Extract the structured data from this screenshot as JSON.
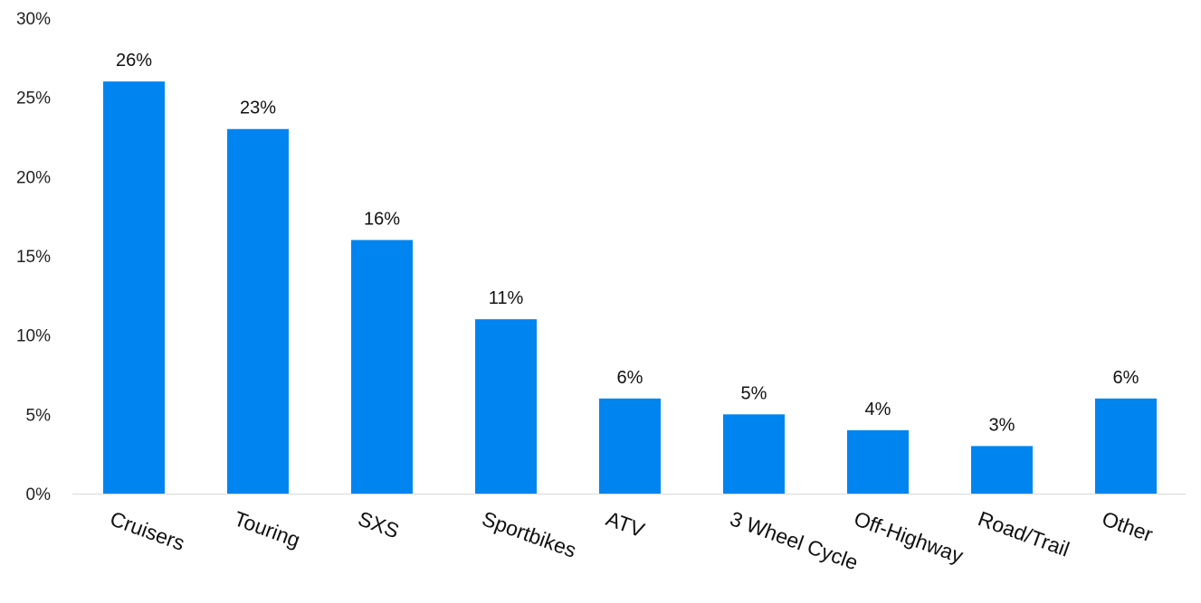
{
  "chart_data": {
    "type": "bar",
    "categories": [
      "Cruisers",
      "Touring",
      "SXS",
      "Sportbikes",
      "ATV",
      "3 Wheel Cycle",
      "Off-Highway",
      "Road/Trail",
      "Other"
    ],
    "values": [
      26,
      23,
      16,
      11,
      6,
      5,
      4,
      3,
      6
    ],
    "data_labels": [
      "26%",
      "23%",
      "16%",
      "11%",
      "6%",
      "5%",
      "4%",
      "3%",
      "6%"
    ],
    "yticks": [
      0,
      5,
      10,
      15,
      20,
      25,
      30
    ],
    "ytick_labels": [
      "0%",
      "5%",
      "10%",
      "15%",
      "20%",
      "25%",
      "30%"
    ],
    "ylim": [
      0,
      30
    ],
    "grid": false,
    "legend": false,
    "bar_color": "#0084f0",
    "axis_color": "#d9d9d9"
  }
}
